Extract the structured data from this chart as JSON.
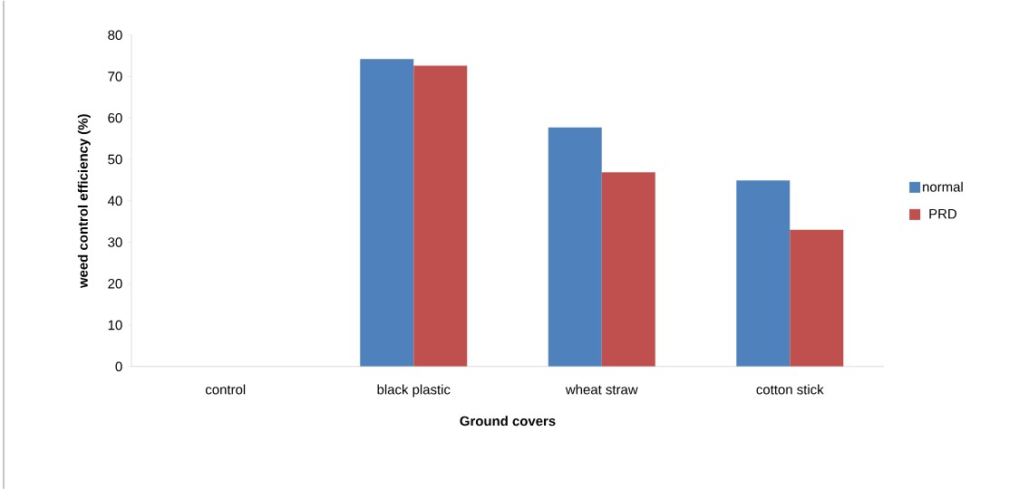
{
  "chart_data": {
    "type": "bar",
    "xlabel": "Ground covers",
    "ylabel": "weed control efficiency (%)",
    "categories": [
      "control",
      "black plastic",
      "wheat straw",
      "cotton stick"
    ],
    "series": [
      {
        "name": "normal",
        "color": "#4f81bd",
        "values": [
          0,
          74.2,
          57.7,
          44.9
        ]
      },
      {
        "name": "PRD",
        "color": "#c0504d",
        "values": [
          0,
          72.6,
          46.9,
          33.0
        ]
      }
    ],
    "ylim": [
      0,
      80
    ],
    "yticks": [
      0,
      10,
      20,
      30,
      40,
      50,
      60,
      70,
      80
    ],
    "grid": false,
    "legend": "right"
  }
}
